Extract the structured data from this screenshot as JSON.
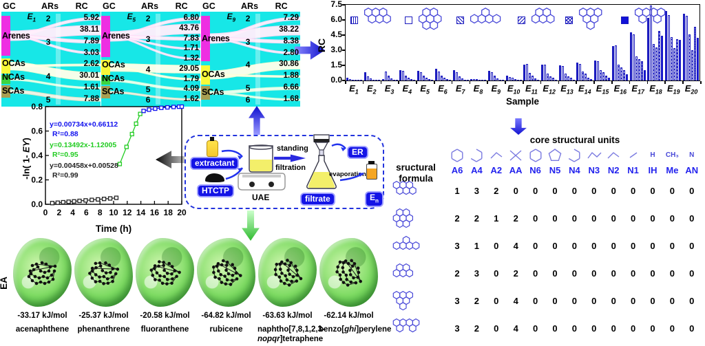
{
  "figure": {
    "accent_blue": "#1414e6",
    "sankey_cyan": "#17e7e7",
    "bar_blue": "#1a1abe"
  },
  "sankey_headers": {
    "gc": "GC",
    "ars": "ARs",
    "rc": "RC"
  },
  "sankeys": [
    {
      "sample_base": "E",
      "sample_sub": "1",
      "categories": [
        {
          "label": "Arenes",
          "color": "#ee2ee2"
        },
        {
          "label": "OCAs",
          "color": "#f8f83a"
        },
        {
          "label": "NCAs",
          "color": "#3fd43f"
        },
        {
          "label": "SCAs",
          "color": "#a89f52"
        }
      ],
      "rows": [
        {
          "ars": "2",
          "rc": "5.92"
        },
        {
          "ars": "",
          "rc": "38.11"
        },
        {
          "ars": "3",
          "rc": "7.89"
        },
        {
          "ars": "",
          "rc": "3.03"
        },
        {
          "ars": "",
          "rc": "2.62"
        },
        {
          "ars": "4",
          "rc": "30.01"
        },
        {
          "ars": "",
          "rc": "1.61"
        },
        {
          "ars": "5",
          "rc": "7.88"
        }
      ]
    },
    {
      "sample_base": "E",
      "sample_sub": "5",
      "categories": [
        {
          "label": "Arenes",
          "color": "#ee2ee2"
        },
        {
          "label": "OCAs",
          "color": "#f8f83a"
        },
        {
          "label": "NCAs",
          "color": "#3fd43f"
        },
        {
          "label": "SCAs",
          "color": "#a89f52"
        }
      ],
      "rows": [
        {
          "ars": "2",
          "rc": "6.80"
        },
        {
          "ars": "",
          "rc": "43.76"
        },
        {
          "ars": "3",
          "rc": "7.83"
        },
        {
          "ars": "",
          "rc": "1.71"
        },
        {
          "ars": "",
          "rc": "1.32"
        },
        {
          "ars": "4",
          "rc": "29.05"
        },
        {
          "ars": "",
          "rc": "1.79"
        },
        {
          "ars": "5",
          "rc": "4.09"
        },
        {
          "ars": "6",
          "rc": "1.62"
        }
      ]
    },
    {
      "sample_base": "E",
      "sample_sub": "9",
      "categories": [
        {
          "label": "Arenes",
          "color": "#ee2ee2"
        },
        {
          "label": "OCAs",
          "color": "#f8f83a"
        },
        {
          "label": "SCAs",
          "color": "#a89f52"
        }
      ],
      "rows": [
        {
          "ars": "2",
          "rc": "7.29"
        },
        {
          "ars": "",
          "rc": "38.22"
        },
        {
          "ars": "3",
          "rc": "8.38"
        },
        {
          "ars": "",
          "rc": "2.80"
        },
        {
          "ars": "4",
          "rc": "30.86"
        },
        {
          "ars": "",
          "rc": "1.88"
        },
        {
          "ars": "5",
          "rc": "6.66"
        },
        {
          "ars": "6",
          "rc": "1.68"
        }
      ]
    }
  ],
  "chart_data": [
    {
      "type": "bar",
      "title": "",
      "xlabel": "Sample",
      "ylabel": "RC",
      "ylim": [
        0,
        7.5
      ],
      "yticks": [
        0.0,
        1.5,
        3.0,
        4.5,
        6.0,
        7.5
      ],
      "grid": false,
      "legend_position": "top-inside",
      "categories": [
        "E1",
        "E2",
        "E3",
        "E4",
        "E5",
        "E6",
        "E7",
        "E8",
        "E9",
        "E10",
        "E11",
        "E12",
        "E13",
        "E14",
        "E15",
        "E16",
        "E17",
        "E18",
        "E19",
        "E20"
      ],
      "series": [
        {
          "name": "pah-structure-1",
          "marker": "vertical-lines",
          "values": [
            0.3,
            0.85,
            0.15,
            1.0,
            0.95,
            1.15,
            1.05,
            0.15,
            0.95,
            0.45,
            1.55,
            1.6,
            1.5,
            1.75,
            2.0,
            3.4,
            4.8,
            6.2,
            6.9,
            6.6
          ]
        },
        {
          "name": "pah-structure-2",
          "marker": "open",
          "values": [
            0.15,
            0.4,
            0.9,
            0.95,
            0.8,
            0.9,
            0.8,
            0.15,
            0.85,
            0.35,
            1.65,
            1.55,
            1.45,
            1.65,
            1.9,
            3.5,
            4.6,
            7.4,
            6.5,
            6.4
          ]
        },
        {
          "name": "pah-structure-3",
          "marker": "diagonal-hatch",
          "values": [
            0.1,
            0.2,
            0.45,
            0.45,
            0.5,
            0.5,
            0.4,
            0.12,
            0.45,
            0.25,
            0.75,
            0.7,
            0.65,
            0.9,
            1.0,
            1.6,
            2.4,
            3.6,
            4.3,
            4.6
          ]
        },
        {
          "name": "pah-structure-4",
          "marker": "diagonal-hatch-reverse",
          "values": [
            0.05,
            0.1,
            0.2,
            0.3,
            0.25,
            0.3,
            0.22,
            0.1,
            0.2,
            0.15,
            0.45,
            0.4,
            0.4,
            0.7,
            0.8,
            1.3,
            2.1,
            3.3,
            3.2,
            3.0
          ]
        },
        {
          "name": "pah-structure-5",
          "marker": "cross-hatch",
          "values": [
            0.03,
            0.05,
            0.1,
            0.15,
            0.12,
            0.15,
            0.1,
            0.08,
            0.1,
            0.08,
            0.2,
            0.25,
            0.25,
            0.3,
            0.45,
            1.0,
            1.9,
            4.9,
            4.1,
            5.3
          ]
        },
        {
          "name": "pah-structure-6",
          "marker": "solid",
          "values": [
            0.02,
            0.02,
            0.03,
            0.05,
            0.04,
            0.05,
            0.04,
            0.04,
            0.05,
            0.03,
            0.08,
            0.1,
            0.1,
            0.15,
            0.3,
            0.6,
            1.0,
            4.4,
            4.0,
            4.2
          ]
        }
      ]
    },
    {
      "type": "line",
      "xlabel": "Time (h)",
      "ylabel": "-ln( 1- EY)",
      "ylabel_pre": "-ln( 1- ",
      "ylabel_it": "EY",
      "ylabel_post": ")",
      "xlim": [
        0,
        20
      ],
      "ylim": [
        0,
        0.8
      ],
      "xticks": [
        0,
        2,
        4,
        6,
        8,
        10,
        12,
        14,
        16,
        18,
        20
      ],
      "yticks": [
        0.0,
        0.2,
        0.4,
        0.6,
        0.8
      ],
      "grid": false,
      "series": [
        {
          "name": "stage-3-plateau",
          "color": "#1111ee",
          "marker": "square-open",
          "equation": "y=0.00734x+0.66112",
          "r2": "R²=0.88",
          "points": [
            [
              14.4,
              0.765
            ],
            [
              15.2,
              0.775
            ],
            [
              16.1,
              0.783
            ],
            [
              17.0,
              0.79
            ],
            [
              17.9,
              0.794
            ],
            [
              18.8,
              0.797
            ],
            [
              19.6,
              0.799
            ],
            [
              20.0,
              0.8
            ]
          ]
        },
        {
          "name": "stage-2-rise",
          "color": "#22cc22",
          "marker": "square-open",
          "equation": "y=0.13492x-1.12005",
          "r2": "R²=0.95",
          "points": [
            [
              10.9,
              0.33
            ],
            [
              11.9,
              0.47
            ],
            [
              12.7,
              0.575
            ],
            [
              13.3,
              0.66
            ],
            [
              13.9,
              0.74
            ]
          ]
        },
        {
          "name": "stage-1-slow",
          "color": "#222222",
          "marker": "square-open",
          "equation": "y=0.00458x+0.00528",
          "r2": "R²=0.99",
          "points": [
            [
              1,
              0.01
            ],
            [
              1.8,
              0.013
            ],
            [
              2.6,
              0.017
            ],
            [
              3.4,
              0.021
            ],
            [
              4.2,
              0.024
            ],
            [
              5.0,
              0.028
            ],
            [
              5.9,
              0.032
            ],
            [
              6.8,
              0.036
            ],
            [
              7.7,
              0.04
            ],
            [
              8.6,
              0.044
            ],
            [
              9.5,
              0.048
            ],
            [
              10.4,
              0.053
            ]
          ]
        }
      ]
    }
  ],
  "process": {
    "extractant": "extractant",
    "htctp": "HTCTP",
    "uae": "UAE",
    "standing": "standing",
    "filtration": "filtration",
    "er": "ER",
    "filtrate": "filtrate",
    "evaporation": "evaporation",
    "en_base": "E",
    "en_sub": "n"
  },
  "ea": {
    "label": "EA",
    "items": [
      {
        "energy": "-33.17 kJ/mol",
        "name_pre": "acenaphthene",
        "name_it": "",
        "name_post": ""
      },
      {
        "energy": "-25.37 kJ/mol",
        "name_pre": "phenanthrene",
        "name_it": "",
        "name_post": ""
      },
      {
        "energy": "-20.58 kJ/mol",
        "name_pre": "fluoranthene",
        "name_it": "",
        "name_post": ""
      },
      {
        "energy": "-64.82 kJ/mol",
        "name_pre": "rubicene",
        "name_it": "",
        "name_post": ""
      },
      {
        "energy": "-63.63 kJ/mol",
        "name_pre": "naphtho[7,8,1,2,3-",
        "name_it": "nopqr",
        "name_post": "]tetraphene"
      },
      {
        "energy": "-62.14 kJ/mol",
        "name_pre": "benzo[",
        "name_it": "ghi",
        "name_post": "]perylene"
      }
    ]
  },
  "table": {
    "header_sf": "sructural formula",
    "header_units": "core structural units",
    "units": [
      {
        "label": "A6",
        "glyph": "hex-aromatic"
      },
      {
        "label": "A4",
        "glyph": "hex-partial-aromatic"
      },
      {
        "label": "A2",
        "glyph": "segment-pair"
      },
      {
        "label": "AA",
        "glyph": "cross-link"
      },
      {
        "label": "N6",
        "glyph": "hexagon"
      },
      {
        "label": "N5",
        "glyph": "pentagon"
      },
      {
        "label": "N4",
        "glyph": "hex-partial"
      },
      {
        "label": "N3",
        "glyph": "segment-triple"
      },
      {
        "label": "N2",
        "glyph": "segment-pair"
      },
      {
        "label": "N1",
        "glyph": "segment-single"
      },
      {
        "label": "IH",
        "glyph": "H"
      },
      {
        "label": "Me",
        "glyph": "CH3"
      },
      {
        "label": "AN",
        "glyph": "N"
      }
    ],
    "rows": [
      {
        "structure": "pah-row-structure-1",
        "values": [
          1,
          3,
          2,
          0,
          0,
          0,
          0,
          0,
          0,
          0,
          0,
          0,
          0
        ]
      },
      {
        "structure": "pah-row-structure-2",
        "values": [
          2,
          2,
          1,
          2,
          0,
          0,
          0,
          0,
          0,
          0,
          0,
          0,
          0
        ]
      },
      {
        "structure": "pah-row-structure-3",
        "values": [
          3,
          1,
          0,
          4,
          0,
          0,
          0,
          0,
          0,
          0,
          0,
          0,
          0
        ]
      },
      {
        "structure": "pah-row-structure-4",
        "values": [
          2,
          3,
          0,
          2,
          0,
          0,
          0,
          0,
          0,
          0,
          0,
          0,
          0
        ]
      },
      {
        "structure": "pah-row-structure-5",
        "values": [
          3,
          2,
          0,
          4,
          0,
          0,
          0,
          0,
          0,
          0,
          0,
          0,
          0
        ]
      },
      {
        "structure": "pah-row-structure-6",
        "values": [
          3,
          2,
          0,
          4,
          0,
          0,
          0,
          0,
          0,
          0,
          0,
          0,
          0
        ]
      }
    ]
  }
}
